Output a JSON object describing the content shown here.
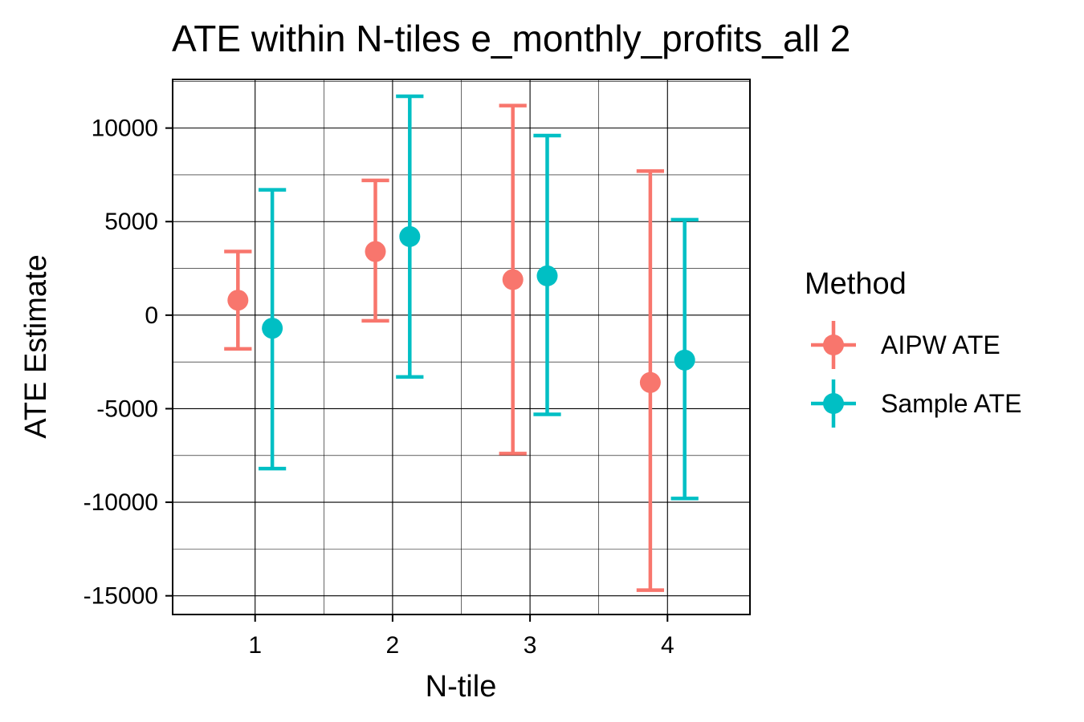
{
  "chart_data": {
    "type": "errorbar",
    "title": "ATE within N-tiles e_monthly_profits_all 2",
    "xlabel": "N-tile",
    "ylabel": "ATE Estimate",
    "categories": [
      "1",
      "2",
      "3",
      "4"
    ],
    "ylim": [
      -16000,
      12600
    ],
    "yticks": [
      10000,
      5000,
      0,
      -5000,
      -10000,
      -15000
    ],
    "ytick_labels": [
      "10000",
      "5000",
      "0",
      "-5000",
      "-10000",
      "-15000"
    ],
    "grid": true,
    "legend": {
      "title": "Method",
      "position": "right"
    },
    "series": [
      {
        "name": "AIPW ATE",
        "color": "#F8766D",
        "estimate": [
          800,
          3400,
          1900,
          -3600
        ],
        "lower": [
          -1800,
          -300,
          -7400,
          -14700
        ],
        "upper": [
          3400,
          7200,
          11200,
          7700
        ]
      },
      {
        "name": "Sample ATE",
        "color": "#00BFC4",
        "estimate": [
          -700,
          4200,
          2100,
          -2400
        ],
        "lower": [
          -8200,
          -3300,
          -5300,
          -9800
        ],
        "upper": [
          6700,
          11700,
          9600,
          5100
        ]
      }
    ]
  }
}
